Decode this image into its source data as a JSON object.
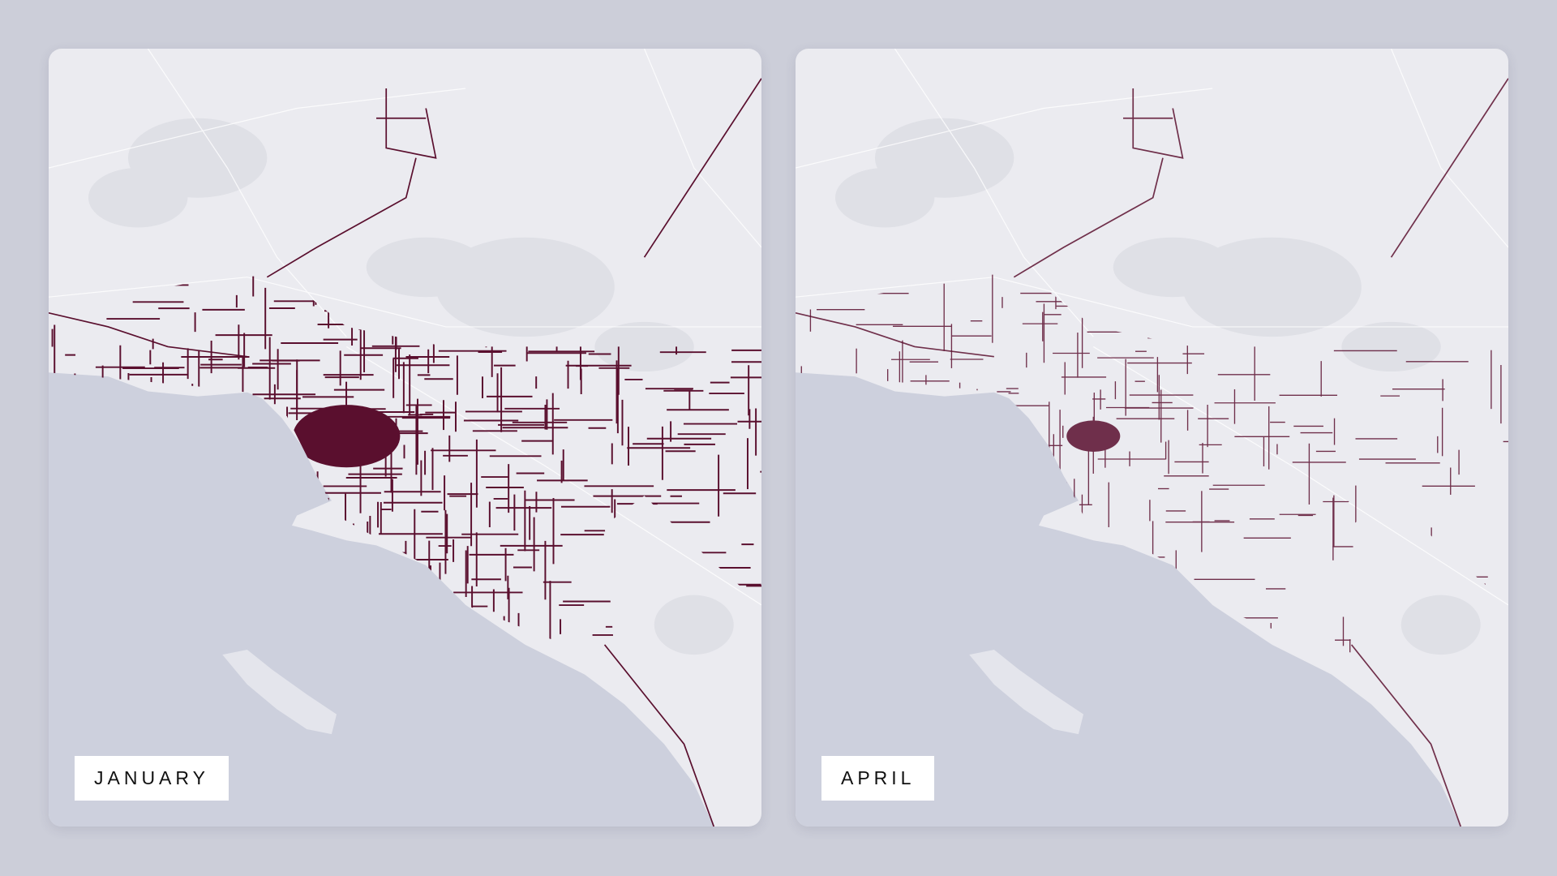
{
  "panels": [
    {
      "label": "JANUARY"
    },
    {
      "label": "APRIL"
    }
  ]
}
